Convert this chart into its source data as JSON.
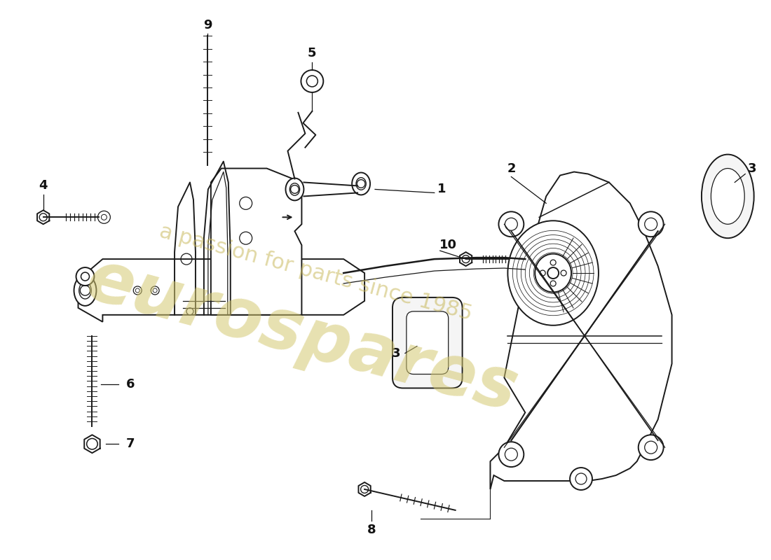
{
  "background_color": "#ffffff",
  "line_color": "#1a1a1a",
  "watermark_text1": "eurospares",
  "watermark_text2": "a passion for parts since 1985",
  "watermark_color1": "#d4c870",
  "watermark_color2": "#c8b85a",
  "lw_main": 1.4,
  "lw_thin": 0.9
}
